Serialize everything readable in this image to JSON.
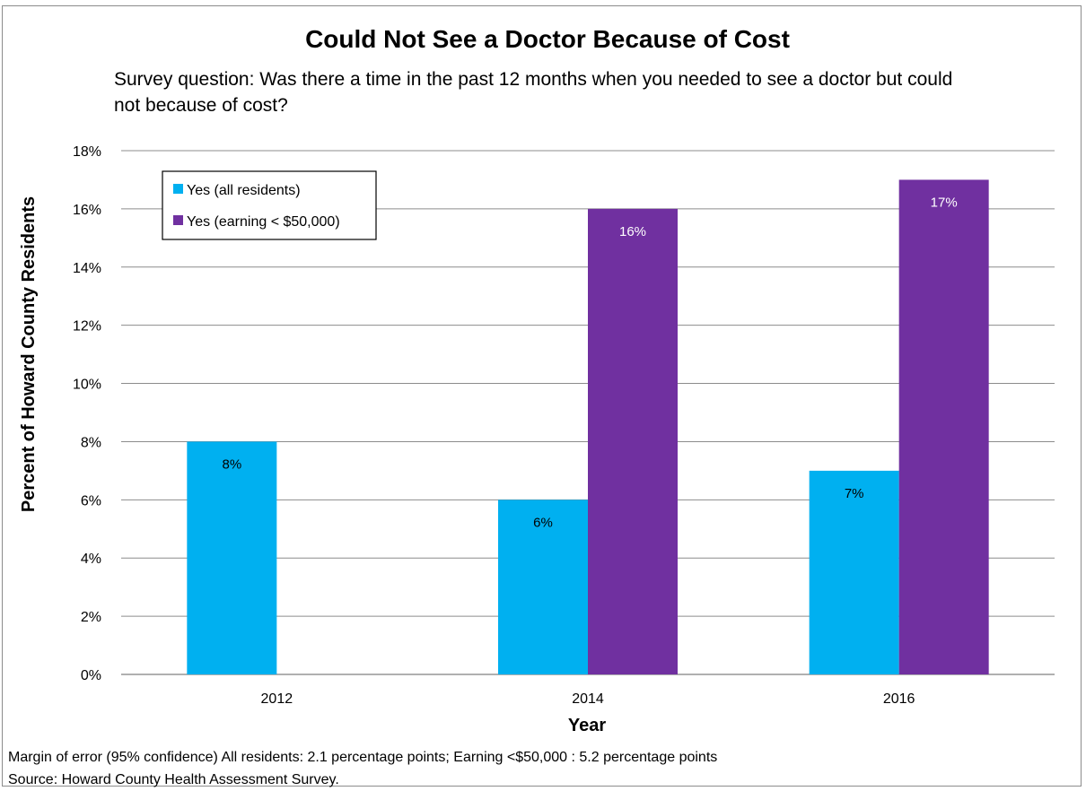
{
  "chart_data": {
    "type": "bar",
    "title": "Could Not See a Doctor Because of Cost",
    "subtitle_lines": [
      "Survey question: Was there a time in the past 12 months when you needed to see a doctor but could",
      "not because of cost?"
    ],
    "xlabel": "Year",
    "ylabel": "Percent of Howard County Residents",
    "categories": [
      "2012",
      "2014",
      "2016"
    ],
    "ylim": [
      0,
      18
    ],
    "y_ticks": [
      "0%",
      "2%",
      "4%",
      "6%",
      "8%",
      "10%",
      "12%",
      "14%",
      "16%",
      "18%"
    ],
    "grid": true,
    "legend_position": "top-left",
    "series": [
      {
        "name": "Yes (all residents)",
        "color": "#00b0f0",
        "values": [
          8,
          6,
          7
        ],
        "labels": [
          "8%",
          "6%",
          "7%"
        ],
        "label_color": "#000000"
      },
      {
        "name": "Yes (earning < $50,000)",
        "color": "#7030a0",
        "values": [
          null,
          16,
          17
        ],
        "labels": [
          "",
          "16%",
          "17%"
        ],
        "label_color": "#ffffff"
      }
    ]
  },
  "footnotes": [
    "Margin of error (95% confidence) All residents: 2.1 percentage points; Earning <$50,000 : 5.2 percentage points",
    "Source: Howard County Health Assessment Survey."
  ]
}
